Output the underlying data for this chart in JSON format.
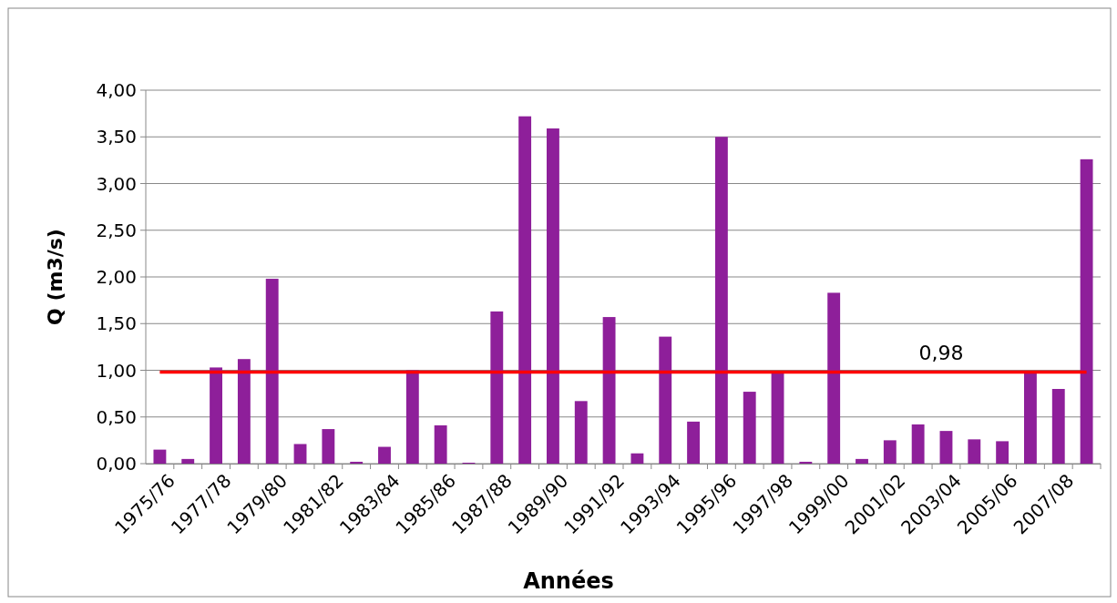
{
  "chart_data": {
    "type": "bar",
    "xlabel": "Années",
    "ylabel": "Q (m3/s)",
    "categories": [
      "1975/76",
      null,
      "1977/78",
      null,
      "1979/80",
      null,
      "1981/82",
      null,
      "1983/84",
      null,
      "1985/86",
      null,
      "1987/88",
      null,
      "1989/90",
      null,
      "1991/92",
      null,
      "1993/94",
      null,
      "1995/96",
      null,
      "1997/98",
      null,
      "1999/00",
      null,
      "2001/02",
      null,
      "2003/04",
      null,
      "2005/06",
      null,
      "2007/08",
      null
    ],
    "values": [
      0.15,
      0.05,
      1.03,
      1.12,
      1.98,
      0.21,
      0.37,
      0.02,
      0.18,
      1.0,
      0.41,
      0.01,
      1.63,
      3.72,
      3.59,
      0.67,
      1.57,
      0.11,
      1.36,
      0.45,
      3.5,
      0.77,
      0.97,
      0.02,
      1.83,
      0.05,
      0.25,
      0.42,
      0.35,
      0.26,
      0.24,
      0.97,
      0.8,
      3.26
    ],
    "color": "#8e1f9a",
    "ylim": [
      0,
      4
    ],
    "yticks": [
      {
        "value": 0,
        "label": "0,00"
      },
      {
        "value": 0.5,
        "label": "0,50"
      },
      {
        "value": 1,
        "label": "1,00"
      },
      {
        "value": 1.5,
        "label": "1,50"
      },
      {
        "value": 2,
        "label": "2,00"
      },
      {
        "value": 2.5,
        "label": "2,50"
      },
      {
        "value": 3,
        "label": "3,00"
      },
      {
        "value": 3.5,
        "label": "3,50"
      },
      {
        "value": 4,
        "label": "4,00"
      }
    ],
    "grid": "y",
    "ref_lines": [
      {
        "axis": "y",
        "value": 0.98,
        "label": "0,98",
        "color": "#ff0000"
      }
    ]
  }
}
